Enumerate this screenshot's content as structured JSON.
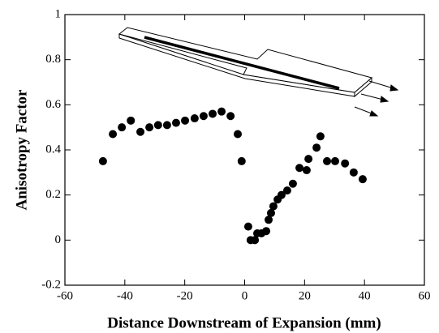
{
  "chart_data": {
    "type": "scatter",
    "x_label": "Distance Downstream of Expansion (mm)",
    "y_label": "Anisotropy Factor",
    "xlim": [
      -60,
      60
    ],
    "xticks": [
      -60,
      -40,
      -20,
      0,
      20,
      40,
      60
    ],
    "ylim": [
      -0.2,
      1
    ],
    "yticks": [
      -0.2,
      0,
      0.2,
      0.4,
      0.6,
      0.8,
      1
    ],
    "series": [
      {
        "color": "#000000",
        "x": [
          -47.3,
          -44,
          -41,
          -38,
          -34.8,
          -31.8,
          -28.9,
          -25.9,
          -22.9,
          -19.9,
          -16.7,
          -13.7,
          -10.7,
          -7.7,
          -4.7,
          -2.3,
          -1,
          1.2,
          2,
          3.4,
          4.2,
          5.6,
          7.2,
          8,
          8.8,
          9.6,
          11,
          12.3,
          14.2,
          16.1,
          18.3,
          20.7,
          21.3,
          24,
          25.3,
          27.5,
          30.2,
          33.5,
          36.4,
          39.4
        ],
        "values": [
          0.35,
          0.47,
          0.5,
          0.53,
          0.48,
          0.5,
          0.51,
          0.51,
          0.52,
          0.53,
          0.54,
          0.55,
          0.56,
          0.57,
          0.55,
          0.47,
          0.35,
          0.06,
          0,
          0,
          0.03,
          0.03,
          0.04,
          0.09,
          0.12,
          0.15,
          0.18,
          0.2,
          0.22,
          0.25,
          0.32,
          0.31,
          0.36,
          0.41,
          0.46,
          0.35,
          0.35,
          0.34,
          0.3,
          0.27
        ]
      }
    ]
  }
}
